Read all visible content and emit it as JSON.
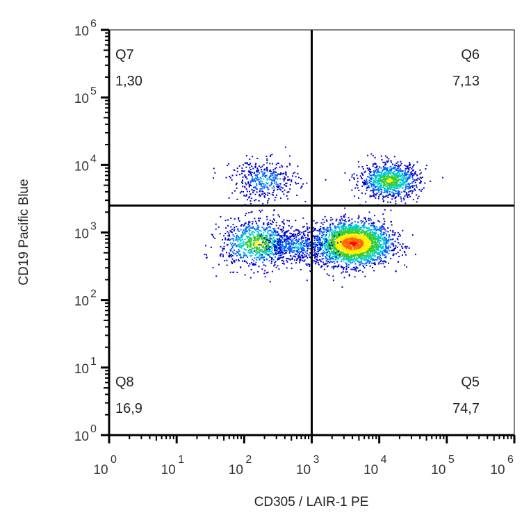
{
  "chart_data": {
    "type": "scatter",
    "xlabel": "CD305 / LAIR-1 PE",
    "ylabel": "CD19 Pacific Blue",
    "x_scale": "log",
    "y_scale": "log",
    "xlim": [
      1,
      1000000
    ],
    "ylim": [
      1,
      1000000
    ],
    "x_tick_exponents": [
      "0",
      "1",
      "2",
      "3",
      "4",
      "5",
      "6"
    ],
    "y_tick_exponents": [
      "0",
      "1",
      "2",
      "3",
      "4",
      "5",
      "6"
    ],
    "tick_base": "10",
    "grid": false,
    "gates": {
      "x": 1000,
      "y": 2500
    },
    "quadrants": [
      {
        "name": "Q7",
        "value": "1,30",
        "position": "top-left"
      },
      {
        "name": "Q6",
        "value": "7,13",
        "position": "top-right"
      },
      {
        "name": "Q8",
        "value": "16,9",
        "position": "bottom-left"
      },
      {
        "name": "Q5",
        "value": "74,7",
        "position": "bottom-right"
      }
    ],
    "populations": [
      {
        "name": "",
        "x_center": 4000,
        "y_center": 700,
        "x_spread_decades": 0.28,
        "y_spread_decades": 0.16,
        "density": "high"
      },
      {
        "name": "",
        "x_center": 160,
        "y_center": 700,
        "x_spread_decades": 0.28,
        "y_spread_decades": 0.18,
        "density": "medium"
      },
      {
        "name": "",
        "x_center": 600,
        "y_center": 650,
        "x_spread_decades": 0.25,
        "y_spread_decades": 0.12,
        "density": "low"
      },
      {
        "name": "",
        "x_center": 14000,
        "y_center": 6000,
        "x_spread_decades": 0.22,
        "y_spread_decades": 0.13,
        "density": "medium"
      },
      {
        "name": "",
        "x_center": 200,
        "y_center": 6000,
        "x_spread_decades": 0.25,
        "y_spread_decades": 0.15,
        "density": "low"
      }
    ],
    "colors": {
      "density_scale": [
        "#0000cc",
        "#0066ff",
        "#00cccc",
        "#33cc33",
        "#ffee00",
        "#ff6600",
        "#ff0000"
      ],
      "axis": "#000000",
      "gate_line": "#000000"
    }
  }
}
